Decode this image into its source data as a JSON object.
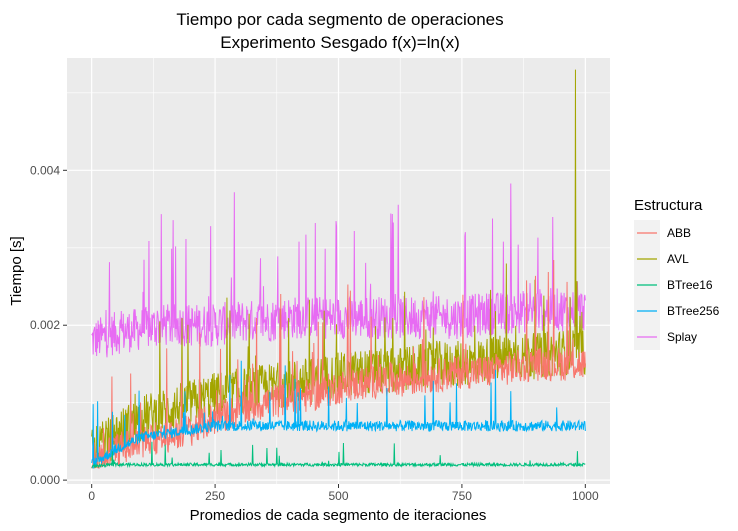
{
  "chart_data": {
    "type": "line",
    "title": "Tiempo por cada segmento de operaciones",
    "subtitle": "Experimento Sesgado f(x)=ln(x)",
    "xlabel": "Promedios de cada segmento de iteraciones",
    "ylabel": "Tiempo [s]",
    "xlim": [
      -50,
      1050
    ],
    "ylim": [
      -5e-05,
      0.00545
    ],
    "xticks": [
      0,
      250,
      500,
      750,
      1000
    ],
    "xtick_labels": [
      "0",
      "250",
      "500",
      "750",
      "1000"
    ],
    "yticks": [
      0,
      0.002,
      0.004
    ],
    "ytick_labels": [
      "0.000",
      "0.002",
      "0.004"
    ],
    "grid": true,
    "legend": {
      "title": "Estructura",
      "position": "right"
    },
    "series": [
      {
        "name": "ABB",
        "color": "#F8766D",
        "x": [
          0,
          50,
          100,
          150,
          200,
          250,
          300,
          350,
          400,
          450,
          500,
          550,
          600,
          650,
          700,
          750,
          800,
          850,
          900,
          950,
          1000
        ],
        "values": [
          0.00025,
          0.0004,
          0.00048,
          0.00055,
          0.00065,
          0.0008,
          0.0009,
          0.001,
          0.00105,
          0.0011,
          0.0012,
          0.00125,
          0.0013,
          0.0013,
          0.00135,
          0.0014,
          0.0014,
          0.00145,
          0.0015,
          0.0015,
          0.0015
        ]
      },
      {
        "name": "AVL",
        "color": "#A3A500",
        "x": [
          0,
          50,
          100,
          150,
          200,
          250,
          300,
          350,
          400,
          450,
          500,
          550,
          600,
          650,
          700,
          750,
          800,
          850,
          900,
          950,
          980,
          1000
        ],
        "values": [
          0.00035,
          0.0006,
          0.0008,
          0.0009,
          0.001,
          0.0011,
          0.00115,
          0.0012,
          0.00125,
          0.0013,
          0.00135,
          0.0014,
          0.0014,
          0.00145,
          0.0015,
          0.0015,
          0.00155,
          0.0016,
          0.0016,
          0.00165,
          0.0053,
          0.00165
        ]
      },
      {
        "name": "BTree16",
        "color": "#00BF7D",
        "x": [
          0,
          50,
          100,
          150,
          200,
          250,
          300,
          350,
          400,
          450,
          500,
          550,
          600,
          650,
          700,
          750,
          800,
          850,
          900,
          950,
          1000
        ],
        "values": [
          0.00018,
          0.0002,
          0.0002,
          0.0002,
          0.0002,
          0.0002,
          0.0002,
          0.0002,
          0.0002,
          0.0002,
          0.0002,
          0.0002,
          0.0002,
          0.0002,
          0.0002,
          0.0002,
          0.0002,
          0.0002,
          0.0002,
          0.0002,
          0.0002
        ]
      },
      {
        "name": "BTree256",
        "color": "#00B0F6",
        "x": [
          0,
          50,
          100,
          150,
          200,
          250,
          300,
          350,
          400,
          450,
          500,
          550,
          600,
          650,
          700,
          750,
          800,
          850,
          900,
          950,
          1000
        ],
        "values": [
          0.0002,
          0.0004,
          0.00055,
          0.0006,
          0.00065,
          0.0007,
          0.0007,
          0.0007,
          0.0007,
          0.0007,
          0.0007,
          0.0007,
          0.0007,
          0.0007,
          0.0007,
          0.0007,
          0.0007,
          0.0007,
          0.0007,
          0.0007,
          0.0007
        ]
      },
      {
        "name": "Splay",
        "color": "#E76BF3",
        "x": [
          0,
          50,
          100,
          150,
          200,
          250,
          300,
          350,
          400,
          450,
          500,
          550,
          600,
          650,
          700,
          750,
          800,
          850,
          900,
          950,
          1000
        ],
        "values": [
          0.0018,
          0.0019,
          0.00195,
          0.002,
          0.002,
          0.002,
          0.00205,
          0.00205,
          0.0021,
          0.0021,
          0.0021,
          0.0021,
          0.0021,
          0.0021,
          0.0021,
          0.0021,
          0.00215,
          0.00215,
          0.0022,
          0.0022,
          0.0022
        ]
      }
    ]
  }
}
